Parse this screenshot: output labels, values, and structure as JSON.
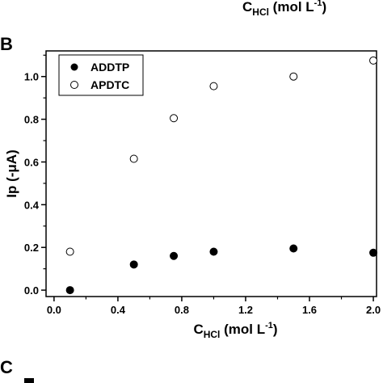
{
  "panels": {
    "top_xlabel": {
      "main": "C",
      "sub": "HCl",
      "rest": " (mol L",
      "sup": "-1",
      "close": ")"
    },
    "b_letter": "B",
    "c_letter": "C"
  },
  "chart_data": {
    "type": "scatter",
    "x_ticks": [
      "0.0",
      "0.4",
      "0.8",
      "1.2",
      "1.6",
      "2.0"
    ],
    "y_ticks": [
      "0.0",
      "0.2",
      "0.4",
      "0.6",
      "0.8",
      "1.0"
    ],
    "xlim": [
      -0.05,
      2.02
    ],
    "ylim": [
      -0.03,
      1.12
    ],
    "xlabel": {
      "main": "C",
      "sub": "HCl",
      "rest": " (mol L",
      "sup": "-1",
      "close": ")"
    },
    "ylabel": "Ip (-μA)",
    "legend_position": "top-left",
    "series": [
      {
        "name": "ADDTP",
        "marker": "filled-circle",
        "x": [
          0.1,
          0.5,
          0.75,
          1.0,
          1.5,
          2.0
        ],
        "y": [
          0.0,
          0.12,
          0.16,
          0.18,
          0.195,
          0.175
        ]
      },
      {
        "name": "APDTC",
        "marker": "open-circle",
        "x": [
          0.1,
          0.5,
          0.75,
          1.0,
          1.5,
          2.0
        ],
        "y": [
          0.18,
          0.615,
          0.805,
          0.955,
          1.0,
          1.075
        ]
      }
    ]
  }
}
